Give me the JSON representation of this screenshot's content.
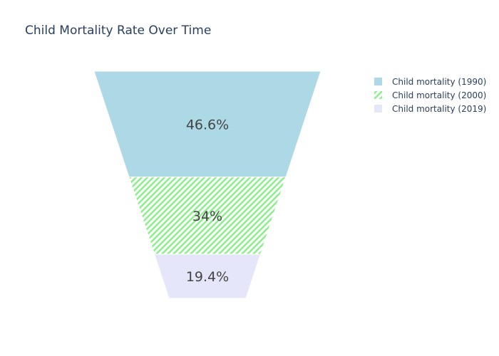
{
  "chart_data": {
    "type": "funnelarea",
    "title": "Child Mortality Rate Over Time",
    "legend_position": "top-right",
    "series": [
      {
        "name": "Child mortality (1990)",
        "value": 46.6,
        "label": "46.6%",
        "color": "#add8e6",
        "pattern": "solid"
      },
      {
        "name": "Child mortality (2000)",
        "value": 34,
        "label": "34%",
        "color": "#90ee90",
        "pattern": "diagonal-hatch"
      },
      {
        "name": "Child mortality (2019)",
        "value": 19.4,
        "label": "19.4%",
        "color": "#e6e6fa",
        "pattern": "solid"
      }
    ]
  }
}
